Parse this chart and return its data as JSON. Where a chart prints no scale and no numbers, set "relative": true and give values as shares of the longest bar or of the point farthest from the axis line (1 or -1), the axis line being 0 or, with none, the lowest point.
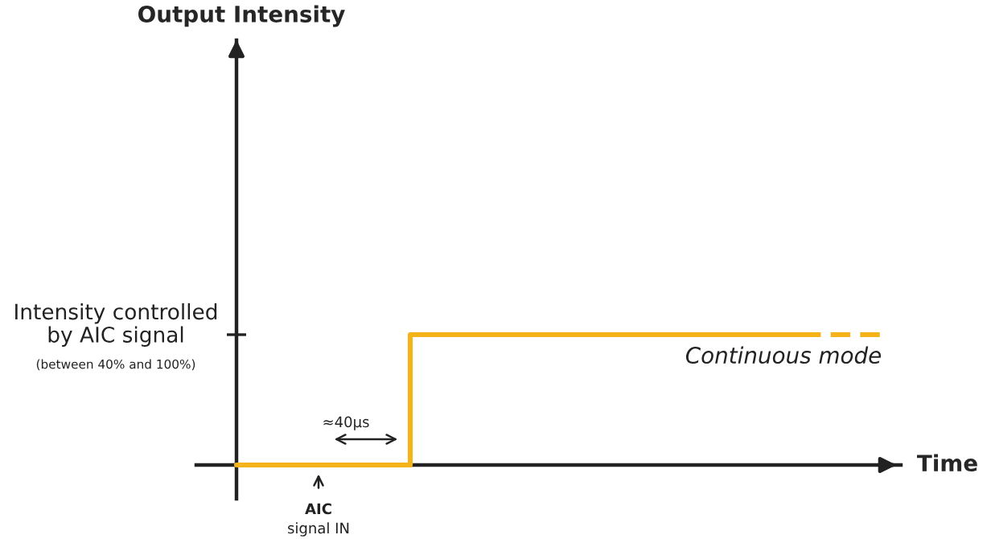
{
  "chart_data": {
    "type": "step",
    "relative": true,
    "title": "Output Intensity",
    "xlabel": "Time",
    "categories": [
      null,
      null,
      null,
      null,
      null,
      null,
      null,
      null,
      null,
      null,
      null,
      null,
      null,
      null,
      null,
      null
    ],
    "series": [
      {
        "color": "#f5b31a",
        "line_style": "solid",
        "values": [
          0,
          0,
          0,
          0,
          1,
          1,
          1,
          1,
          1,
          1,
          1,
          1,
          1,
          1,
          null,
          null
        ]
      },
      {
        "color": "#f5b31a",
        "line_style": "dashed",
        "values": [
          null,
          null,
          null,
          null,
          null,
          null,
          null,
          null,
          null,
          null,
          null,
          null,
          null,
          1,
          1,
          1
        ]
      }
    ],
    "annotations": [
      "Intensity controlled\nby AIC signal",
      "(between 40% and 100%)",
      "≈40µs",
      "AIC",
      "signal IN",
      "Continuous mode"
    ],
    "legend": false,
    "marker": "none"
  }
}
